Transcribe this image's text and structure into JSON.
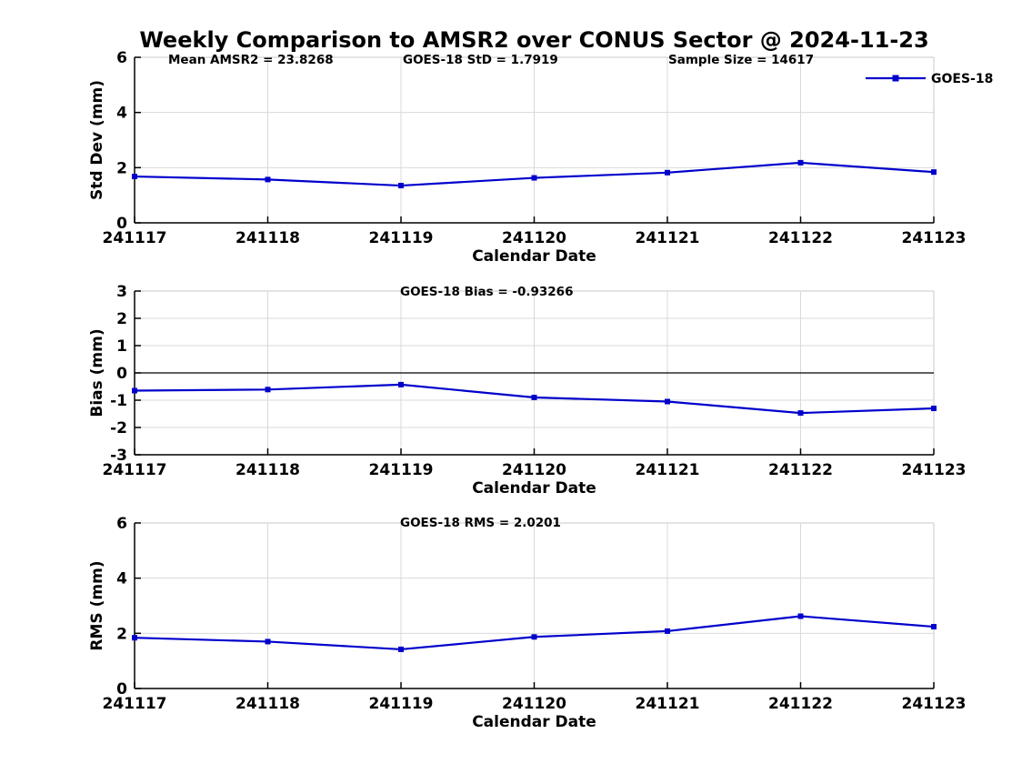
{
  "title": "Weekly Comparison to AMSR2 over CONUS Sector @ 2024-11-23",
  "legend": {
    "label": "GOES-18",
    "position": "top-right"
  },
  "colors": {
    "line": "#0000CC",
    "grid": "#D9D9D9",
    "box": "#C9C9C9",
    "axis": "#000000",
    "zero_line": "#000000",
    "background": "#FFFFFF"
  },
  "x_axis": {
    "label": "Calendar Date",
    "categories": [
      "241117",
      "241118",
      "241119",
      "241120",
      "241121",
      "241122",
      "241123"
    ]
  },
  "chart_data": [
    {
      "type": "line",
      "name": "std-dev",
      "ylabel": "Std Dev (mm)",
      "xlabel": "Calendar Date",
      "ylim": [
        0,
        6
      ],
      "yticks": [
        0,
        2,
        4,
        6
      ],
      "grid": true,
      "legend": true,
      "categories": [
        "241117",
        "241118",
        "241119",
        "241120",
        "241121",
        "241122",
        "241123"
      ],
      "series": [
        {
          "name": "GOES-18",
          "values": [
            1.68,
            1.57,
            1.35,
            1.63,
            1.82,
            2.18,
            1.84
          ]
        }
      ],
      "annotations": [
        "Mean AMSR2 = 23.8268",
        "GOES-18 StD = 1.7919",
        "Sample Size = 14617"
      ]
    },
    {
      "type": "line",
      "name": "bias",
      "ylabel": "Bias (mm)",
      "xlabel": "Calendar Date",
      "ylim": [
        -3,
        3
      ],
      "yticks": [
        -3,
        -2,
        -1,
        0,
        1,
        2,
        3
      ],
      "zero_line": true,
      "grid": true,
      "legend": false,
      "categories": [
        "241117",
        "241118",
        "241119",
        "241120",
        "241121",
        "241122",
        "241123"
      ],
      "series": [
        {
          "name": "GOES-18",
          "values": [
            -0.65,
            -0.61,
            -0.43,
            -0.9,
            -1.05,
            -1.47,
            -1.3
          ]
        }
      ],
      "annotations": [
        "GOES-18 Bias  = -0.93266"
      ]
    },
    {
      "type": "line",
      "name": "rms",
      "ylabel": "RMS (mm)",
      "xlabel": "Calendar Date",
      "ylim": [
        0,
        6
      ],
      "yticks": [
        0,
        2,
        4,
        6
      ],
      "grid": true,
      "legend": false,
      "categories": [
        "241117",
        "241118",
        "241119",
        "241120",
        "241121",
        "241122",
        "241123"
      ],
      "series": [
        {
          "name": "GOES-18",
          "values": [
            1.84,
            1.7,
            1.42,
            1.87,
            2.08,
            2.62,
            2.24
          ]
        }
      ],
      "annotations": [
        "GOES-18 RMS = 2.0201"
      ]
    }
  ]
}
